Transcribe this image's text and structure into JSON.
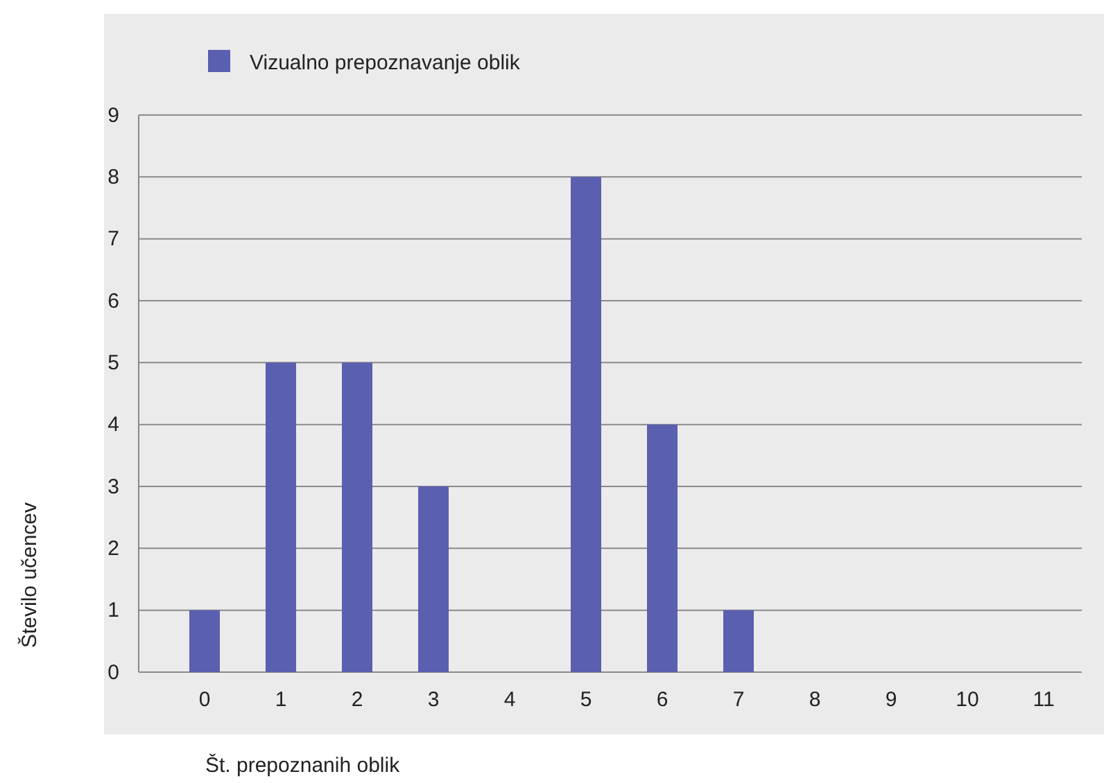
{
  "chart_data": {
    "type": "bar",
    "xlabel": "Št. prepoznanih oblik",
    "ylabel": "Število učencev",
    "categories": [
      "0",
      "1",
      "2",
      "3",
      "4",
      "5",
      "6",
      "7",
      "8",
      "9",
      "10",
      "11"
    ],
    "series": [
      {
        "name": "Vizualno prepoznavanje oblik",
        "color": "#5a5fb0",
        "values": [
          1,
          5,
          5,
          3,
          0,
          8,
          4,
          1,
          0,
          0,
          0,
          0
        ]
      }
    ],
    "ylim": [
      0,
      9
    ],
    "yticks": [
      0,
      1,
      2,
      3,
      4,
      5,
      6,
      7,
      8,
      9
    ],
    "grid": "y",
    "legend": "top left"
  }
}
